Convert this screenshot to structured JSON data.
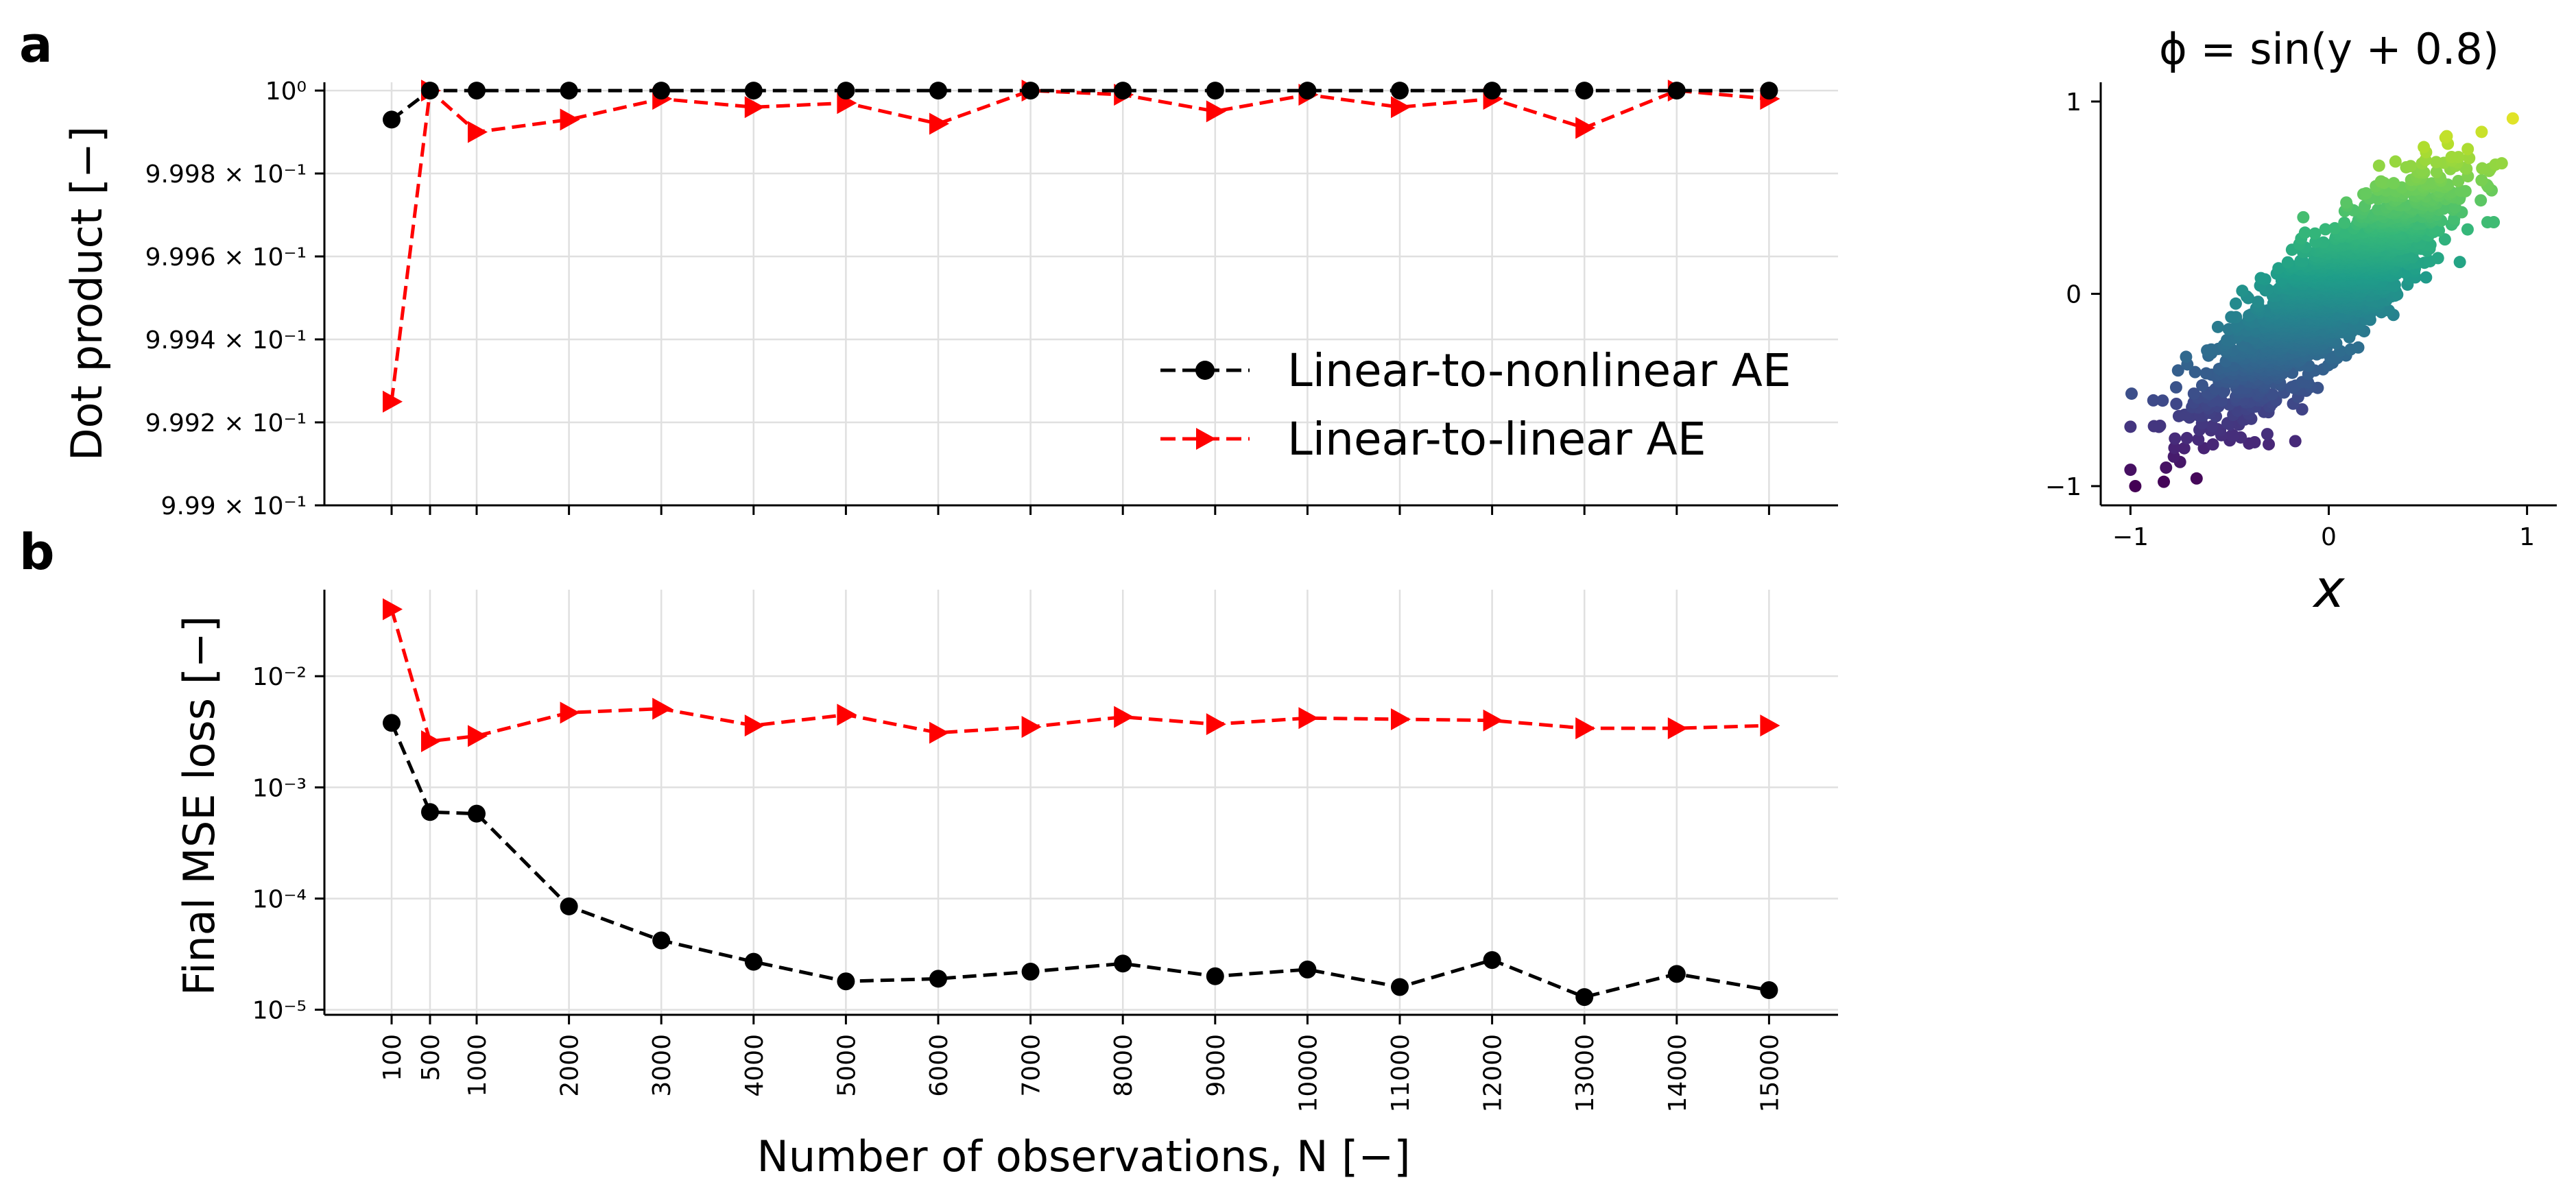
{
  "chart_data": [
    {
      "id": "a",
      "type": "line",
      "panel_label": "a",
      "ylabel": "Dot product [−]",
      "yscale": "log",
      "ylim": [
        0.999,
        1.00002
      ],
      "y_ticks": [
        {
          "value": 1.0,
          "label": "10⁰"
        },
        {
          "value": 0.9998,
          "label": "9.998 × 10⁻¹"
        },
        {
          "value": 0.9996,
          "label": "9.996 × 10⁻¹"
        },
        {
          "value": 0.9994,
          "label": "9.994 × 10⁻¹"
        },
        {
          "value": 0.9992,
          "label": "9.992 × 10⁻¹"
        },
        {
          "value": 0.999,
          "label": "9.99 × 10⁻¹"
        }
      ],
      "x": [
        100,
        500,
        1000,
        2000,
        3000,
        4000,
        5000,
        6000,
        7000,
        8000,
        9000,
        10000,
        11000,
        12000,
        13000,
        14000,
        15000
      ],
      "series": [
        {
          "name": "Linear-to-nonlinear AE",
          "color": "#000000",
          "marker": "circle",
          "values": [
            0.99993,
            1.0,
            1.0,
            1.0,
            1.0,
            1.0,
            1.0,
            1.0,
            1.0,
            1.0,
            1.0,
            1.0,
            1.0,
            1.0,
            1.0,
            1.0,
            1.0
          ]
        },
        {
          "name": "Linear-to-linear AE",
          "color": "#ff0000",
          "marker": "triangle-right",
          "values": [
            0.99925,
            1.0,
            0.9999,
            0.99993,
            0.99998,
            0.99996,
            0.99997,
            0.99992,
            1.0,
            0.99999,
            0.99995,
            0.99999,
            0.99996,
            0.99998,
            0.99991,
            1.0,
            0.99998
          ]
        }
      ],
      "legend": {
        "placement": "lower-right",
        "entries": [
          "Linear-to-nonlinear AE",
          "Linear-to-linear AE"
        ]
      },
      "grid": true
    },
    {
      "id": "b",
      "type": "line",
      "panel_label": "b",
      "ylabel": "Final MSE loss [−]",
      "xlabel": "Number of observations, N [−]",
      "yscale": "log",
      "ylim": [
        9e-06,
        0.06
      ],
      "y_ticks": [
        {
          "value": 0.01,
          "label": "10⁻²"
        },
        {
          "value": 0.001,
          "label": "10⁻³"
        },
        {
          "value": 0.0001,
          "label": "10⁻⁴"
        },
        {
          "value": 1e-05,
          "label": "10⁻⁵"
        }
      ],
      "x": [
        100,
        500,
        1000,
        2000,
        3000,
        4000,
        5000,
        6000,
        7000,
        8000,
        9000,
        10000,
        11000,
        12000,
        13000,
        14000,
        15000
      ],
      "x_tick_labels": [
        "100",
        "500",
        "1000",
        "2000",
        "3000",
        "4000",
        "5000",
        "6000",
        "7000",
        "8000",
        "9000",
        "10000",
        "11000",
        "12000",
        "13000",
        "14000",
        "15000"
      ],
      "series": [
        {
          "name": "Linear-to-nonlinear AE",
          "color": "#000000",
          "marker": "circle",
          "values": [
            0.0038,
            0.0006,
            0.00058,
            8.5e-05,
            4.2e-05,
            2.7e-05,
            1.8e-05,
            1.9e-05,
            2.2e-05,
            2.6e-05,
            2e-05,
            2.3e-05,
            1.6e-05,
            2.8e-05,
            1.3e-05,
            2.1e-05,
            1.5e-05
          ]
        },
        {
          "name": "Linear-to-linear AE",
          "color": "#ff0000",
          "marker": "triangle-right",
          "values": [
            0.04,
            0.0026,
            0.0029,
            0.0047,
            0.0051,
            0.0036,
            0.0045,
            0.0031,
            0.0035,
            0.0043,
            0.0037,
            0.0042,
            0.0041,
            0.004,
            0.0034,
            0.0034,
            0.0036
          ]
        }
      ],
      "grid": true
    },
    {
      "id": "c",
      "type": "scatter",
      "title": "ϕ = sin(y + 0.8)",
      "xlabel": "x",
      "xlim": [
        -1.15,
        1.15
      ],
      "ylim": [
        -1.1,
        1.1
      ],
      "x_ticks": [
        -1,
        0,
        1
      ],
      "y_ticks": [
        -1,
        0,
        1
      ],
      "x_tick_labels": [
        "−1",
        "0",
        "1"
      ],
      "y_tick_labels": [
        "−1",
        "0",
        "1"
      ],
      "colormap": "viridis",
      "n_points": 2000,
      "point_cloud": {
        "corr": 0.85,
        "sigma": 0.28,
        "color_by": "y"
      }
    }
  ]
}
